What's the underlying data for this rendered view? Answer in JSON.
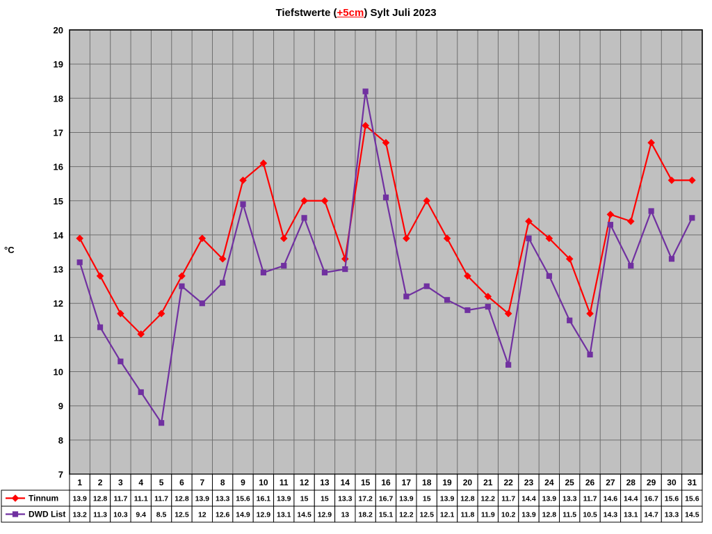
{
  "title": {
    "prefix": "Tiefstwerte (",
    "highlight": "+5cm",
    "suffix": ") Sylt Juli 2023"
  },
  "chart_data": {
    "type": "line",
    "title": "Tiefstwerte (+5cm) Sylt Juli 2023",
    "xlabel": "",
    "ylabel": "°C",
    "ylim": [
      7,
      20
    ],
    "ytick_step": 1,
    "grid": true,
    "plot_bg": "#c0c0c0",
    "grid_color": "#6e6e6e",
    "categories": [
      1,
      2,
      3,
      4,
      5,
      6,
      7,
      8,
      9,
      10,
      11,
      12,
      13,
      14,
      15,
      16,
      17,
      18,
      19,
      20,
      21,
      22,
      23,
      24,
      25,
      26,
      27,
      28,
      29,
      30,
      31
    ],
    "series": [
      {
        "name": "Tinnum",
        "color": "#ff0000",
        "marker": "diamond",
        "values": [
          13.9,
          12.8,
          11.7,
          11.1,
          11.7,
          12.8,
          13.9,
          13.3,
          15.6,
          16.1,
          13.9,
          15,
          15,
          13.3,
          17.2,
          16.7,
          13.9,
          15,
          13.9,
          12.8,
          12.2,
          11.7,
          14.4,
          13.9,
          13.3,
          11.7,
          14.6,
          14.4,
          16.7,
          15.6,
          15.6
        ]
      },
      {
        "name": "DWD List",
        "color": "#7030a0",
        "marker": "square",
        "values": [
          13.2,
          11.3,
          10.3,
          9.4,
          8.5,
          12.5,
          12,
          12.6,
          14.9,
          12.9,
          13.1,
          14.5,
          12.9,
          13,
          18.2,
          15.1,
          12.2,
          12.5,
          12.1,
          11.8,
          11.9,
          10.2,
          13.9,
          12.8,
          11.5,
          10.5,
          14.3,
          13.1,
          14.7,
          13.3,
          14.5
        ]
      }
    ],
    "legend_position": "bottom-left-table"
  }
}
